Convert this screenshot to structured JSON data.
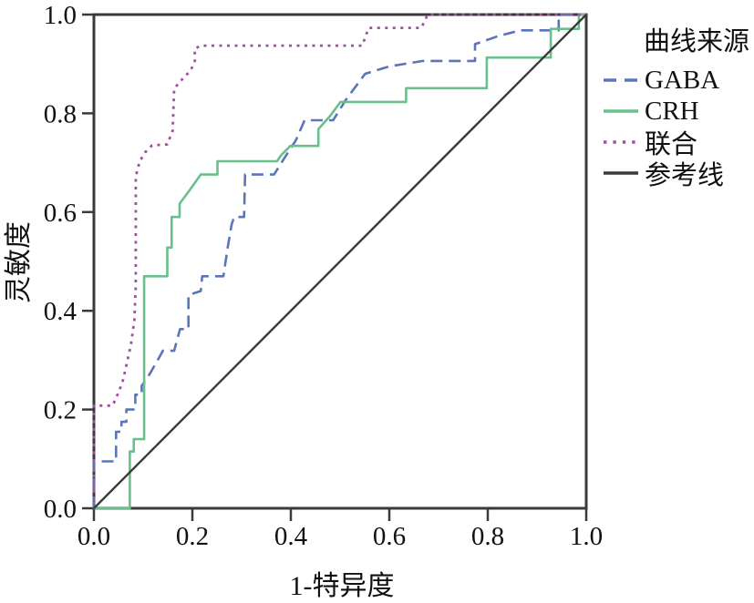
{
  "chart_data": {
    "type": "line",
    "subtype": "roc-curves",
    "title": "",
    "xlabel": "1-特异度",
    "ylabel": "灵敏度",
    "xlim": [
      0,
      1
    ],
    "ylim": [
      0,
      1
    ],
    "grid": false,
    "frame": true,
    "frame_color": "#3a3a3a",
    "legend_position": "right",
    "legend_title": "曲线来源",
    "x_ticks": [
      "0.0",
      "0.2",
      "0.4",
      "0.6",
      "0.8",
      "1.0"
    ],
    "y_ticks": [
      "0.0",
      "0.2",
      "0.4",
      "0.6",
      "0.8",
      "1.0"
    ],
    "x_tick_values": [
      0,
      0.2,
      0.4,
      0.6,
      0.8,
      1.0
    ],
    "y_tick_values": [
      0,
      0.2,
      0.4,
      0.6,
      0.8,
      1.0
    ],
    "series": [
      {
        "name": "GABA",
        "color": "#5b76b8",
        "style": "dashed",
        "width": 2.6,
        "points": [
          [
            0,
            0
          ],
          [
            0,
            0.095
          ],
          [
            0.045,
            0.095
          ],
          [
            0.045,
            0.155
          ],
          [
            0.056,
            0.155
          ],
          [
            0.056,
            0.175
          ],
          [
            0.066,
            0.175
          ],
          [
            0.066,
            0.2
          ],
          [
            0.084,
            0.2
          ],
          [
            0.084,
            0.23
          ],
          [
            0.097,
            0.23
          ],
          [
            0.097,
            0.248
          ],
          [
            0.112,
            0.27
          ],
          [
            0.128,
            0.297
          ],
          [
            0.14,
            0.319
          ],
          [
            0.163,
            0.319
          ],
          [
            0.175,
            0.363
          ],
          [
            0.192,
            0.363
          ],
          [
            0.192,
            0.432
          ],
          [
            0.217,
            0.44
          ],
          [
            0.22,
            0.47
          ],
          [
            0.263,
            0.47
          ],
          [
            0.272,
            0.53
          ],
          [
            0.28,
            0.576
          ],
          [
            0.285,
            0.59
          ],
          [
            0.305,
            0.59
          ],
          [
            0.307,
            0.676
          ],
          [
            0.366,
            0.676
          ],
          [
            0.384,
            0.705
          ],
          [
            0.41,
            0.745
          ],
          [
            0.428,
            0.786
          ],
          [
            0.486,
            0.786
          ],
          [
            0.51,
            0.825
          ],
          [
            0.551,
            0.88
          ],
          [
            0.6,
            0.895
          ],
          [
            0.668,
            0.906
          ],
          [
            0.774,
            0.906
          ],
          [
            0.774,
            0.94
          ],
          [
            0.82,
            0.956
          ],
          [
            0.866,
            0.968
          ],
          [
            0.944,
            0.968
          ],
          [
            0.944,
            1
          ],
          [
            1,
            1
          ]
        ]
      },
      {
        "name": "CRH",
        "color": "#68c08c",
        "style": "solid",
        "width": 2.6,
        "points": [
          [
            0,
            0
          ],
          [
            0.073,
            0
          ],
          [
            0.073,
            0.115
          ],
          [
            0.081,
            0.115
          ],
          [
            0.081,
            0.14
          ],
          [
            0.102,
            0.14
          ],
          [
            0.102,
            0.47
          ],
          [
            0.149,
            0.47
          ],
          [
            0.149,
            0.528
          ],
          [
            0.158,
            0.528
          ],
          [
            0.158,
            0.59
          ],
          [
            0.174,
            0.59
          ],
          [
            0.174,
            0.617
          ],
          [
            0.195,
            0.645
          ],
          [
            0.217,
            0.676
          ],
          [
            0.251,
            0.676
          ],
          [
            0.251,
            0.703
          ],
          [
            0.372,
            0.703
          ],
          [
            0.38,
            0.715
          ],
          [
            0.399,
            0.734
          ],
          [
            0.456,
            0.734
          ],
          [
            0.456,
            0.768
          ],
          [
            0.48,
            0.795
          ],
          [
            0.501,
            0.823
          ],
          [
            0.634,
            0.823
          ],
          [
            0.634,
            0.851
          ],
          [
            0.798,
            0.851
          ],
          [
            0.798,
            0.913
          ],
          [
            0.928,
            0.913
          ],
          [
            0.928,
            0.971
          ],
          [
            0.985,
            0.971
          ],
          [
            0.985,
            1
          ],
          [
            1,
            1
          ]
        ]
      },
      {
        "name": "联合",
        "color": "#9e4f9e",
        "style": "dotted",
        "width": 2.8,
        "points": [
          [
            0,
            0
          ],
          [
            0,
            0.208
          ],
          [
            0.038,
            0.208
          ],
          [
            0.048,
            0.23
          ],
          [
            0.058,
            0.255
          ],
          [
            0.065,
            0.285
          ],
          [
            0.075,
            0.33
          ],
          [
            0.082,
            0.38
          ],
          [
            0.085,
            0.45
          ],
          [
            0.085,
            0.672
          ],
          [
            0.093,
            0.703
          ],
          [
            0.105,
            0.722
          ],
          [
            0.118,
            0.735
          ],
          [
            0.149,
            0.737
          ],
          [
            0.16,
            0.765
          ],
          [
            0.163,
            0.85
          ],
          [
            0.183,
            0.873
          ],
          [
            0.195,
            0.885
          ],
          [
            0.205,
            0.903
          ],
          [
            0.205,
            0.931
          ],
          [
            0.217,
            0.937
          ],
          [
            0.545,
            0.937
          ],
          [
            0.558,
            0.973
          ],
          [
            0.665,
            0.973
          ],
          [
            0.678,
            1
          ],
          [
            1,
            1
          ]
        ]
      },
      {
        "name": "参考线",
        "color": "#3a3a3a",
        "style": "solid",
        "width": 2.4,
        "points": [
          [
            0,
            0
          ],
          [
            1,
            1
          ]
        ]
      }
    ]
  }
}
